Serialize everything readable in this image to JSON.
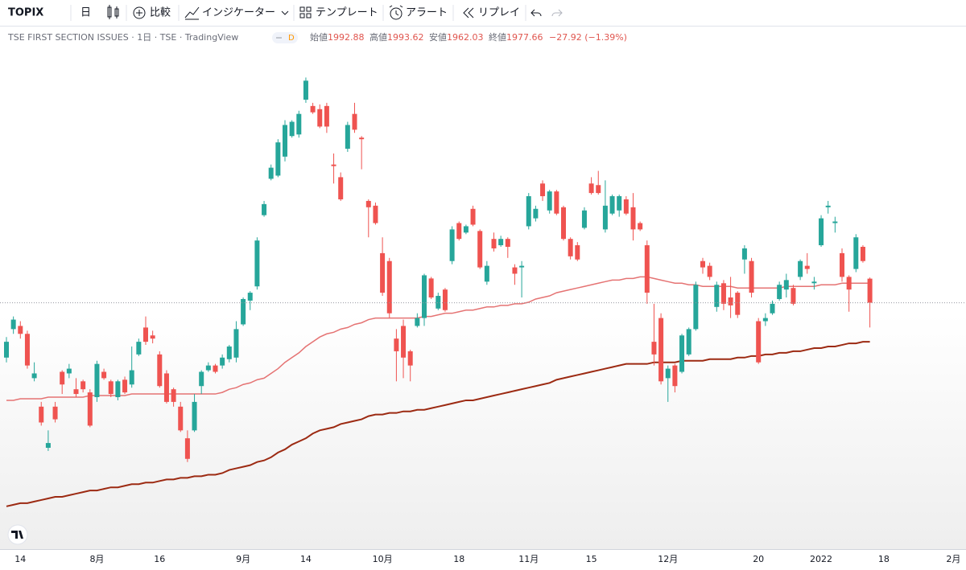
{
  "toolbar": {
    "symbol": "TOPIX",
    "interval": "日",
    "compare": "比較",
    "indicators": "インジケーター",
    "templates": "テンプレート",
    "alerts": "アラート",
    "replay": "リプレイ"
  },
  "header": {
    "symbol_line": "TSE FIRST SECTION ISSUES · 1日 · TSE · TradingView",
    "badge": "D",
    "open_label": "始値",
    "high_label": "高値",
    "low_label": "安値",
    "close_label": "終値",
    "change": "−27.92 (−1.39%)"
  },
  "chart_data": {
    "type": "candlestick",
    "categories": [
      null,
      null,
      "14",
      null,
      null,
      null,
      null,
      null,
      null,
      null,
      null,
      null,
      null,
      "8月",
      null,
      null,
      null,
      null,
      null,
      null,
      null,
      null,
      "16",
      null,
      null,
      null,
      null,
      null,
      null,
      null,
      null,
      null,
      null,
      null,
      "9月",
      null,
      null,
      null,
      null,
      null,
      null,
      null,
      null,
      "14",
      null,
      null,
      null,
      null,
      null,
      null,
      null,
      null,
      null,
      null,
      "10月",
      null,
      null,
      null,
      null,
      null,
      null,
      null,
      null,
      null,
      null,
      "18",
      null,
      null,
      null,
      null,
      null,
      null,
      null,
      null,
      null,
      "11月",
      null,
      null,
      null,
      null,
      null,
      null,
      null,
      null,
      "15",
      null,
      null,
      null,
      null,
      null,
      null,
      null,
      null,
      null,
      null,
      "12月",
      null,
      null,
      null,
      null,
      null,
      null,
      null,
      null,
      null,
      null,
      null,
      null,
      "20",
      null,
      null,
      null,
      null,
      null,
      null,
      null,
      null,
      "2022",
      null,
      null,
      null,
      null,
      null,
      null,
      null,
      null,
      "18",
      null,
      null,
      null,
      null,
      null,
      null,
      null,
      null,
      null,
      "2月"
    ],
    "open": [
      1943,
      1961,
      1963,
      1958,
      1930,
      1912,
      1886,
      1912,
      1934,
      1933,
      1923,
      1928,
      1921,
      1918,
      1934,
      1928,
      1918,
      1929,
      1926,
      1945,
      1962,
      1957,
      1945,
      1933,
      1923,
      1912,
      1892,
      1897,
      1925,
      1935,
      1938,
      1938,
      1942,
      1943,
      1964,
      1979,
      1988,
      2033,
      2056,
      2058,
      2070,
      2083,
      2084,
      2106,
      2102,
      2100,
      2102,
      2065,
      2057,
      2075,
      2097,
      2082,
      2042,
      2039,
      2009,
      2004,
      1955,
      1963,
      1947,
      1963,
      1968,
      1993,
      1974,
      1986,
      2004,
      2028,
      2022,
      2037,
      2023,
      1991,
      2018,
      2014,
      2018,
      2000,
      2000,
      2026,
      2031,
      2053,
      2036,
      2048,
      2038,
      2018,
      2014,
      2025,
      2053,
      2052,
      2024,
      2034,
      2036,
      2043,
      2038,
      2028,
      2014,
      1953,
      1968,
      1930,
      1938,
      1934,
      1945,
      1961,
      2004,
      2001,
      1975,
      1990,
      1981,
      1984,
      2005,
      2004,
      1966,
      1966,
      1971,
      1980,
      1986,
      1987,
      1994,
      2001,
      1990,
      2014,
      2038,
      2028,
      2009,
      1994,
      1999,
      2013,
      1992.88,
      null,
      null,
      null,
      null,
      null,
      null,
      null,
      null,
      null,
      null,
      null,
      null
    ],
    "high": [
      1956,
      1969,
      1966,
      1960,
      1940,
      1915,
      1897,
      1915,
      1935,
      1939,
      1930,
      1929,
      1923,
      1941,
      1936,
      1929,
      1929,
      1931,
      1950,
      1955,
      1969,
      1960,
      1947,
      1935,
      1924,
      1915,
      1897,
      1920,
      1935,
      1940,
      1939,
      1945,
      1951,
      1966,
      1981,
      1985,
      2019,
      2042,
      2065,
      2081,
      2093,
      2093,
      2099,
      2120,
      2104,
      2103,
      2104,
      2072,
      2060,
      2092,
      2104,
      2083,
      2043,
      2041,
      2019,
      2006,
      1961,
      1967,
      1948,
      1971,
      1996,
      1994,
      1984,
      1987,
      2026,
      2029,
      2027,
      2039,
      2024,
      2004,
      2022,
      2020,
      2019,
      2002,
      2004,
      2047,
      2039,
      2055,
      2049,
      2049,
      2039,
      2019,
      2016,
      2038,
      2057,
      2061,
      2055,
      2046,
      2046,
      2045,
      2047,
      2029,
      2017,
      1977,
      1971,
      1938,
      1939,
      1958,
      1962,
      1991,
      2006,
      2003,
      1991,
      1992,
      1994,
      1985,
      2014,
      2006,
      1968,
      1971,
      1979,
      1991,
      1996,
      1989,
      2005,
      2009,
      1994,
      2033,
      2042,
      2032,
      2012,
      1995,
      2021,
      2014,
      1993.62,
      null,
      null,
      null,
      null,
      null,
      null,
      null,
      null,
      null,
      null,
      null,
      null
    ],
    "low": [
      1940,
      1958,
      1955,
      1936,
      1928,
      1900,
      1884,
      1902,
      1920,
      1930,
      1918,
      1921,
      1899,
      1915,
      1929,
      1918,
      1916,
      1920,
      1924,
      1944,
      1951,
      1952,
      1924,
      1914,
      1912,
      1896,
      1877,
      1896,
      1920,
      1934,
      1933,
      1936,
      1940,
      1940,
      1963,
      1973,
      1986,
      2032,
      2055,
      2057,
      2067,
      2082,
      2082,
      2104,
      2097,
      2088,
      2085,
      2053,
      2042,
      2073,
      2085,
      2062,
      2019,
      2027,
      1982,
      1968,
      1928,
      1930,
      1928,
      1962,
      1963,
      1980,
      1973,
      1972,
      2002,
      2017,
      2021,
      2026,
      1999,
      1989,
      2010,
      2013,
      2006,
      1989,
      1981,
      2024,
      2029,
      2042,
      2034,
      2033,
      2017,
      2005,
      2004,
      2024,
      2046,
      2046,
      2022,
      2033,
      2032,
      2033,
      2017,
      2023,
      1977,
      1938,
      1926,
      1915,
      1921,
      1933,
      1944,
      1960,
      1996,
      1992,
      1972,
      1973,
      1968,
      1968,
      1996,
      1981,
      1939,
      1963,
      1970,
      1979,
      1981,
      1976,
      1992,
      1996,
      1986,
      2013,
      2034,
      2022,
      1991,
      1972,
      1997,
      2003,
      1962.03,
      null,
      null,
      null,
      null,
      null,
      null,
      null,
      null,
      null,
      null,
      null,
      null
    ],
    "close": [
      1953,
      1967,
      1958,
      1938,
      1933,
      1902,
      1889,
      1904,
      1926,
      1936,
      1920,
      1923,
      1900,
      1939,
      1930,
      1920,
      1928,
      1921,
      1935,
      1953,
      1953,
      1955,
      1925,
      1915,
      1915,
      1897,
      1879,
      1915,
      1934,
      1938,
      1934,
      1943,
      1950,
      1961,
      1980,
      1984,
      2017,
      2040,
      2063,
      2079,
      2090,
      2092,
      2097,
      2118,
      2098,
      2089,
      2089,
      2064,
      2043,
      2090,
      2087,
      2081,
      2038,
      2028,
      1984,
      1971,
      1947,
      1943,
      1938,
      1968,
      1995,
      1981,
      1982,
      1973,
      2024,
      2018,
      2026,
      2027,
      2000,
      2001,
      2012,
      2018,
      2013,
      1996,
      2001,
      2045,
      2037,
      2045,
      2048,
      2034,
      2018,
      2007,
      2005,
      2036,
      2047,
      2047,
      2039,
      2045,
      2045,
      2034,
      2024,
      2024,
      1984,
      1945,
      1928,
      1936,
      1925,
      1957,
      1961,
      1989,
      2000,
      1994,
      1989,
      1977,
      1976,
      1970,
      2012,
      1984,
      1940,
      1968,
      1977,
      1989,
      1992,
      1977,
      2004,
      1999,
      1991,
      2031,
      2039,
      2029,
      1994,
      1986,
      2019,
      2004,
      1977.66,
      null,
      null,
      null,
      null,
      null,
      null,
      null,
      null,
      null,
      null,
      null,
      null
    ],
    "up_color": "#26a69a",
    "down_color": "#ef5350",
    "moving_averages": [
      {
        "color": "#e57373",
        "values": [
          1916,
          1916,
          1917,
          1917,
          1917,
          1917,
          1918,
          1918,
          1918,
          1918,
          1918,
          1918,
          1919,
          1919,
          1919,
          1919,
          1919,
          1919,
          1920,
          1920,
          1920,
          1920,
          1920,
          1920,
          1920,
          1920,
          1920,
          1920,
          1920,
          1920,
          1920,
          1921,
          1923,
          1924,
          1926,
          1927,
          1929,
          1930,
          1933,
          1936,
          1940,
          1943,
          1946,
          1950,
          1953,
          1956,
          1958,
          1959,
          1961,
          1962,
          1964,
          1965,
          1967,
          1968,
          1968,
          1968,
          1968,
          1968,
          1968,
          1968,
          1969,
          1969,
          1970,
          1971,
          1971,
          1972,
          1973,
          1973,
          1974,
          1975,
          1975,
          1976,
          1976,
          1977,
          1977,
          1978,
          1980,
          1981,
          1982,
          1984,
          1985,
          1986,
          1987,
          1988,
          1989,
          1990,
          1991,
          1992,
          1992,
          1993,
          1993,
          1994,
          1994,
          1993,
          1992,
          1991,
          1990,
          1990,
          1989,
          1989,
          1988,
          1988,
          1988,
          1988,
          1988,
          1987,
          1987,
          1987,
          1987,
          1987,
          1987,
          1987,
          1988,
          1988,
          1988,
          1988,
          1988,
          1989,
          1989,
          1989,
          1990,
          1990,
          1990,
          1990,
          1990,
          null,
          null,
          null,
          null,
          null,
          null,
          null,
          null,
          null,
          null,
          null,
          null
        ]
      },
      {
        "color": "#9c2a12",
        "values": [
          1849,
          1850,
          1851,
          1851,
          1852,
          1853,
          1854,
          1855,
          1855,
          1856,
          1857,
          1858,
          1859,
          1859,
          1860,
          1861,
          1861,
          1862,
          1863,
          1863,
          1864,
          1864,
          1865,
          1866,
          1866,
          1867,
          1867,
          1868,
          1868,
          1869,
          1869,
          1870,
          1872,
          1873,
          1874,
          1875,
          1877,
          1878,
          1880,
          1883,
          1885,
          1888,
          1890,
          1892,
          1895,
          1897,
          1898,
          1899,
          1901,
          1902,
          1903,
          1904,
          1906,
          1907,
          1907,
          1908,
          1908,
          1909,
          1909,
          1910,
          1910,
          1911,
          1912,
          1913,
          1914,
          1915,
          1916,
          1916,
          1917,
          1918,
          1919,
          1920,
          1921,
          1922,
          1923,
          1924,
          1925,
          1926,
          1927,
          1929,
          1930,
          1931,
          1932,
          1933,
          1934,
          1935,
          1936,
          1937,
          1938,
          1939,
          1939,
          1939,
          1939,
          1940,
          1940,
          1940,
          1940,
          1941,
          1941,
          1941,
          1941,
          1942,
          1942,
          1942,
          1942,
          1943,
          1943,
          1944,
          1944,
          1945,
          1945,
          1946,
          1946,
          1947,
          1947,
          1948,
          1949,
          1949,
          1950,
          1950,
          1951,
          1952,
          1952,
          1953,
          1953,
          null,
          null,
          null,
          null,
          null,
          null,
          null,
          null,
          null,
          null,
          null,
          null
        ]
      }
    ],
    "ylim": [
      1823.5,
      2138.5
    ],
    "last_price_line": true
  }
}
